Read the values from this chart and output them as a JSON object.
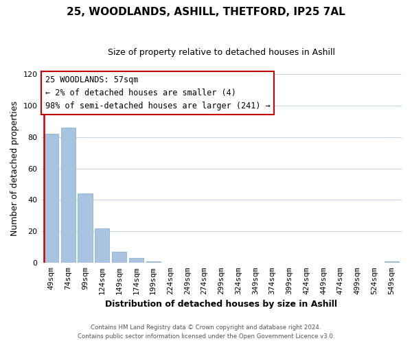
{
  "title": "25, WOODLANDS, ASHILL, THETFORD, IP25 7AL",
  "subtitle": "Size of property relative to detached houses in Ashill",
  "xlabel": "Distribution of detached houses by size in Ashill",
  "ylabel": "Number of detached properties",
  "categories": [
    "49sqm",
    "74sqm",
    "99sqm",
    "124sqm",
    "149sqm",
    "174sqm",
    "199sqm",
    "224sqm",
    "249sqm",
    "274sqm",
    "299sqm",
    "324sqm",
    "349sqm",
    "374sqm",
    "399sqm",
    "424sqm",
    "449sqm",
    "474sqm",
    "499sqm",
    "524sqm",
    "549sqm"
  ],
  "values": [
    82,
    86,
    44,
    22,
    7,
    3,
    1,
    0,
    0,
    0,
    0,
    0,
    0,
    0,
    0,
    0,
    0,
    0,
    0,
    0,
    1
  ],
  "bar_color": "#a8c4e0",
  "bar_edge_color": "#7aa8cc",
  "highlight_line_color": "#cc0000",
  "ylim": [
    0,
    120
  ],
  "yticks": [
    0,
    20,
    40,
    60,
    80,
    100,
    120
  ],
  "annotation_title": "25 WOODLANDS: 57sqm",
  "annotation_line1": "← 2% of detached houses are smaller (4)",
  "annotation_line2": "98% of semi-detached houses are larger (241) →",
  "annotation_box_color": "#cc0000",
  "footnote1": "Contains HM Land Registry data © Crown copyright and database right 2024.",
  "footnote2": "Contains public sector information licensed under the Open Government Licence v3.0.",
  "background_color": "#ffffff",
  "grid_color": "#c8d8e8",
  "title_fontsize": 11,
  "subtitle_fontsize": 9,
  "ylabel_fontsize": 9,
  "xlabel_fontsize": 9,
  "tick_fontsize": 8,
  "annot_fontsize": 8.5
}
